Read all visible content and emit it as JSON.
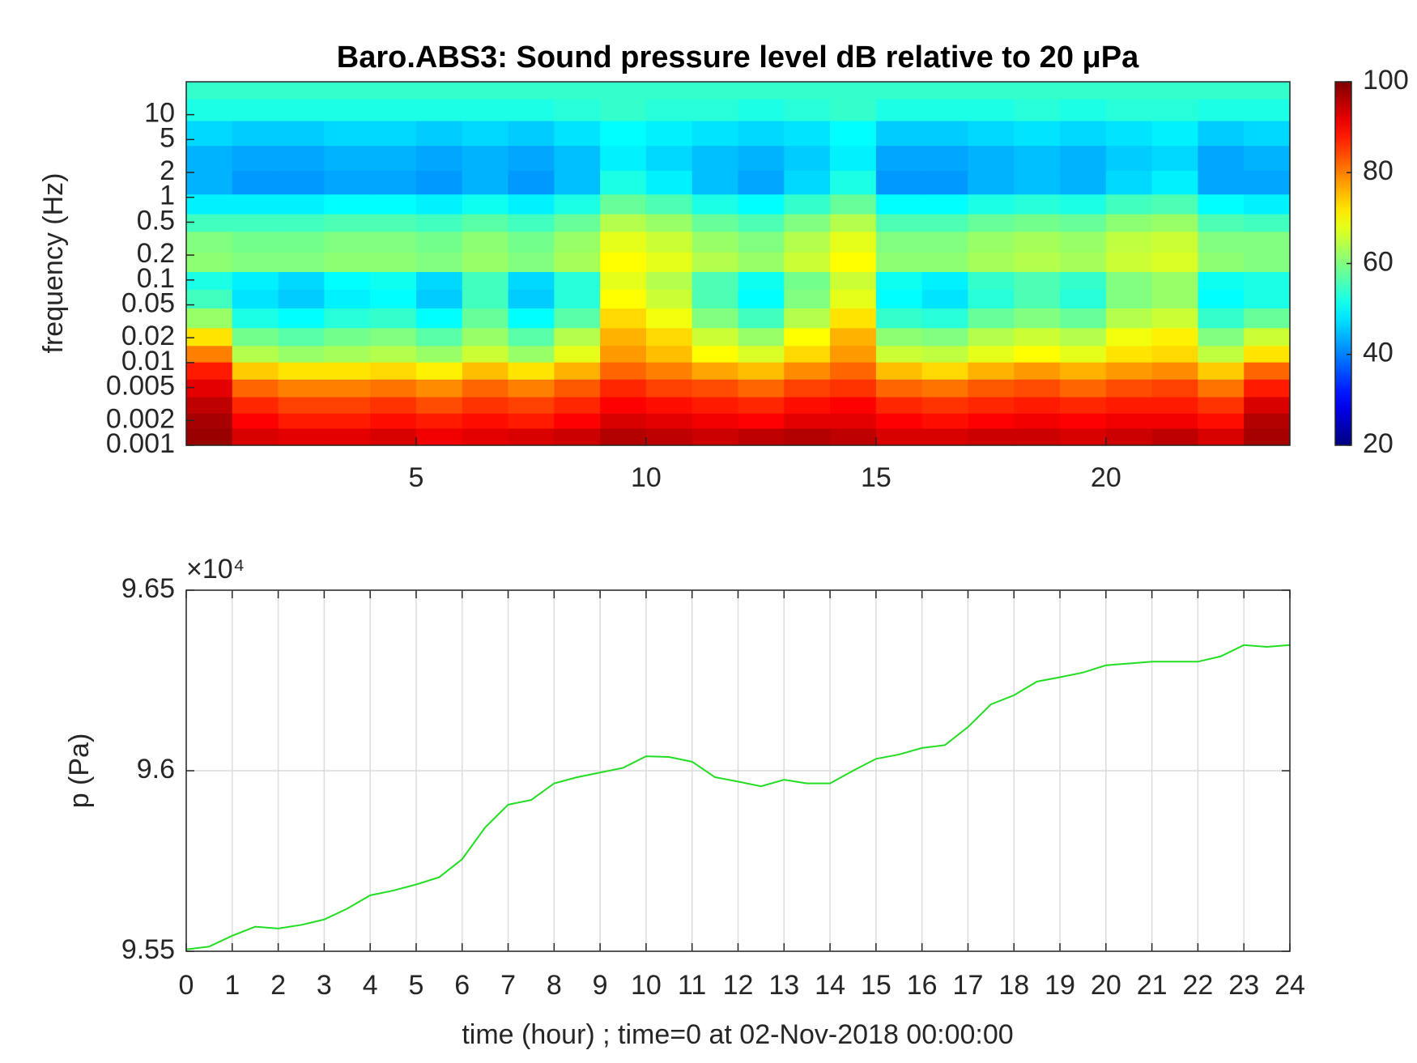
{
  "chart_data": [
    {
      "type": "heatmap",
      "title": "Baro.ABS3: Sound pressure level dB relative to 20 μPa",
      "y_label": "frequency (Hz)",
      "log_y": true,
      "colormap": "jet",
      "xlim": [
        0,
        24
      ],
      "xticks": [
        5,
        10,
        15,
        20
      ],
      "ylim": [
        0.001,
        25
      ],
      "yticks": [
        0.001,
        0.002,
        0.005,
        0.01,
        0.02,
        0.05,
        0.1,
        0.2,
        0.5,
        1,
        2,
        5,
        10
      ],
      "x": [
        0.5,
        1.5,
        2.5,
        3.5,
        4.5,
        5.5,
        6.5,
        7.5,
        8.5,
        9.5,
        10.5,
        11.5,
        12.5,
        13.5,
        14.5,
        15.5,
        16.5,
        17.5,
        18.5,
        19.5,
        20.5,
        21.5,
        22.5,
        23.5
      ],
      "y": [
        0.0013,
        0.002,
        0.003,
        0.005,
        0.008,
        0.013,
        0.02,
        0.035,
        0.06,
        0.1,
        0.16,
        0.3,
        0.5,
        0.8,
        1.5,
        3,
        6,
        12,
        20
      ],
      "z": [
        [
          98,
          93,
          92,
          92,
          93,
          91,
          92,
          93,
          94,
          96,
          95,
          94,
          95,
          96,
          95,
          93,
          93,
          94,
          94,
          93,
          94,
          95,
          93,
          97
        ],
        [
          97,
          90,
          88,
          88,
          89,
          88,
          89,
          88,
          90,
          93,
          92,
          91,
          90,
          92,
          92,
          90,
          89,
          90,
          91,
          90,
          91,
          91,
          89,
          96
        ],
        [
          95,
          87,
          85,
          85,
          86,
          84,
          86,
          85,
          87,
          90,
          89,
          88,
          87,
          89,
          90,
          87,
          86,
          87,
          88,
          87,
          88,
          88,
          86,
          93
        ],
        [
          92,
          82,
          80,
          80,
          81,
          79,
          82,
          80,
          83,
          87,
          85,
          84,
          82,
          85,
          86,
          82,
          81,
          83,
          84,
          82,
          84,
          85,
          81,
          88
        ],
        [
          88,
          74,
          72,
          72,
          73,
          71,
          75,
          72,
          76,
          82,
          80,
          77,
          75,
          79,
          82,
          75,
          73,
          76,
          78,
          76,
          78,
          79,
          74,
          82
        ],
        [
          80,
          64,
          62,
          63,
          64,
          62,
          66,
          62,
          68,
          78,
          75,
          70,
          67,
          73,
          78,
          66,
          65,
          68,
          70,
          68,
          72,
          73,
          65,
          72
        ],
        [
          72,
          59,
          57,
          59,
          60,
          57,
          62,
          57,
          64,
          76,
          73,
          66,
          62,
          70,
          76,
          61,
          60,
          64,
          66,
          64,
          69,
          71,
          60,
          66
        ],
        [
          62,
          52,
          50,
          53,
          54,
          50,
          58,
          50,
          57,
          73,
          69,
          60,
          55,
          64,
          72,
          54,
          53,
          58,
          60,
          58,
          64,
          66,
          54,
          58
        ],
        [
          55,
          48,
          46,
          49,
          50,
          46,
          55,
          46,
          53,
          70,
          66,
          56,
          50,
          60,
          68,
          50,
          48,
          53,
          56,
          53,
          60,
          62,
          50,
          52
        ],
        [
          52,
          49,
          47,
          50,
          51,
          47,
          55,
          47,
          53,
          68,
          64,
          56,
          51,
          59,
          66,
          51,
          49,
          54,
          56,
          54,
          60,
          62,
          51,
          52
        ],
        [
          61,
          60,
          60,
          61,
          61,
          60,
          62,
          60,
          63,
          70,
          68,
          64,
          62,
          66,
          70,
          61,
          61,
          63,
          64,
          63,
          66,
          67,
          61,
          60
        ],
        [
          60,
          59,
          59,
          60,
          60,
          59,
          61,
          59,
          62,
          68,
          66,
          62,
          60,
          64,
          68,
          60,
          60,
          62,
          63,
          62,
          65,
          66,
          60,
          60
        ],
        [
          55,
          55,
          55,
          56,
          56,
          55,
          57,
          55,
          58,
          64,
          62,
          58,
          56,
          60,
          64,
          56,
          56,
          58,
          59,
          58,
          61,
          62,
          56,
          55
        ],
        [
          49,
          49,
          49,
          50,
          50,
          49,
          51,
          49,
          52,
          58,
          56,
          52,
          50,
          54,
          58,
          50,
          50,
          52,
          53,
          52,
          55,
          56,
          50,
          49
        ],
        [
          44,
          42,
          42,
          43,
          43,
          42,
          44,
          42,
          45,
          52,
          49,
          45,
          43,
          47,
          52,
          42,
          42,
          44,
          45,
          44,
          47,
          49,
          43,
          43
        ],
        [
          44,
          43,
          43,
          44,
          44,
          43,
          44,
          43,
          45,
          49,
          47,
          45,
          44,
          46,
          49,
          43,
          43,
          44,
          45,
          44,
          46,
          47,
          43,
          44
        ],
        [
          47,
          46,
          46,
          47,
          47,
          46,
          47,
          46,
          48,
          50,
          49,
          48,
          47,
          48,
          50,
          46,
          46,
          47,
          48,
          47,
          48,
          49,
          46,
          47
        ],
        [
          52,
          52,
          52,
          52,
          52,
          52,
          52,
          52,
          53,
          54,
          53,
          53,
          52,
          53,
          54,
          52,
          52,
          52,
          53,
          52,
          53,
          53,
          52,
          52
        ],
        [
          54,
          54,
          54,
          54,
          54,
          54,
          54,
          54,
          54,
          54,
          54,
          54,
          54,
          54,
          54,
          54,
          54,
          54,
          54,
          54,
          54,
          54,
          54,
          54
        ]
      ],
      "colorbar": {
        "lim": [
          20,
          100
        ],
        "ticks": [
          20,
          40,
          60,
          80,
          100
        ]
      }
    },
    {
      "type": "line",
      "x_label": "time (hour) ; time=0 at 02-Nov-2018 00:00:00",
      "y_label": "p (Pa)",
      "y_multiplier": "×10⁴",
      "grid": true,
      "color": "#22dd22",
      "xlim": [
        0,
        24
      ],
      "xticks": [
        0,
        1,
        2,
        3,
        4,
        5,
        6,
        7,
        8,
        9,
        10,
        11,
        12,
        13,
        14,
        15,
        16,
        17,
        18,
        19,
        20,
        21,
        22,
        23,
        24
      ],
      "ylim": [
        95500,
        96500
      ],
      "yticks": [
        {
          "value": 95500,
          "label": "9.55"
        },
        {
          "value": 96000,
          "label": "9.6"
        },
        {
          "value": 96500,
          "label": "9.65"
        }
      ],
      "x": [
        0,
        0.5,
        1,
        1.5,
        2,
        2.5,
        3,
        3.5,
        4,
        4.5,
        5,
        5.5,
        6,
        6.5,
        7,
        7.5,
        8,
        8.5,
        9,
        9.5,
        10,
        10.5,
        11,
        11.5,
        12,
        12.5,
        13,
        13.5,
        14,
        14.5,
        15,
        15.5,
        16,
        16.5,
        17,
        17.5,
        18,
        18.5,
        19,
        19.5,
        20,
        20.5,
        21,
        21.5,
        22,
        22.5,
        23,
        23.5,
        24
      ],
      "values": [
        95505,
        95513,
        95543,
        95568,
        95563,
        95573,
        95588,
        95618,
        95655,
        95668,
        95685,
        95705,
        95755,
        95843,
        95906,
        95919,
        95965,
        95982,
        95995,
        96008,
        96040,
        96038,
        96025,
        95982,
        95970,
        95957,
        95975,
        95965,
        95965,
        96000,
        96033,
        96045,
        96063,
        96071,
        96121,
        96184,
        96209,
        96247,
        96259,
        96272,
        96292,
        96297,
        96302,
        96302,
        96302,
        96317,
        96348,
        96343,
        96348
      ]
    }
  ]
}
